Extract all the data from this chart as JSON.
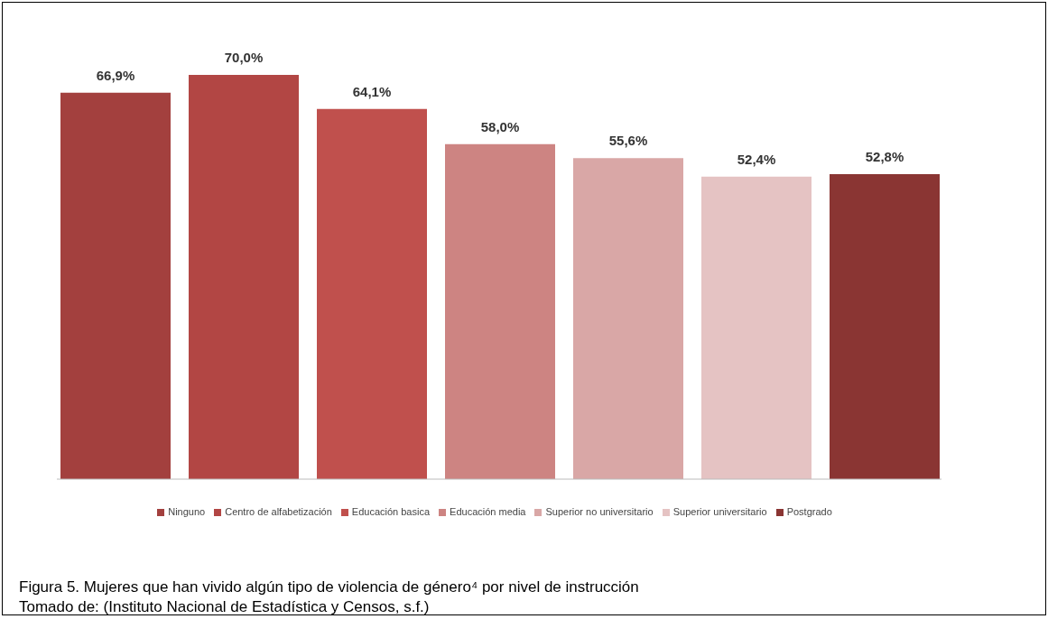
{
  "chart_data": {
    "type": "bar",
    "title": "Figura 5. Mujeres que han vivido algún tipo de violencia de género⁴ por nivel de instrucción",
    "annotations": [
      "Tomado de: (Instituto Nacional de Estadística y Censos, s.f.)"
    ],
    "categories": [
      null
    ],
    "series": [
      {
        "name": "Ninguno",
        "color": "#a3403e",
        "values": [
          66.9
        ],
        "value_labels": [
          "66,9%"
        ]
      },
      {
        "name": "Centro de alfabetización",
        "color": "#b24644",
        "values": [
          70.0
        ],
        "value_labels": [
          "70,0%"
        ]
      },
      {
        "name": "Educación basica",
        "color": "#c0504d",
        "values": [
          64.1
        ],
        "value_labels": [
          "64,1%"
        ]
      },
      {
        "name": "Educación media",
        "color": "#cd8482",
        "values": [
          58.0
        ],
        "value_labels": [
          "58,0%"
        ]
      },
      {
        "name": "Superior no universitario",
        "color": "#d9a7a6",
        "values": [
          55.6
        ],
        "value_labels": [
          "55,6%"
        ]
      },
      {
        "name": "Superior universitario",
        "color": "#e5c3c3",
        "values": [
          52.4
        ],
        "value_labels": [
          "52,4%"
        ]
      },
      {
        "name": "Postgrado",
        "color": "#8a3533",
        "values": [
          52.8
        ],
        "value_labels": [
          "52,8%"
        ]
      }
    ],
    "legend": "bottom",
    "grid": false
  }
}
